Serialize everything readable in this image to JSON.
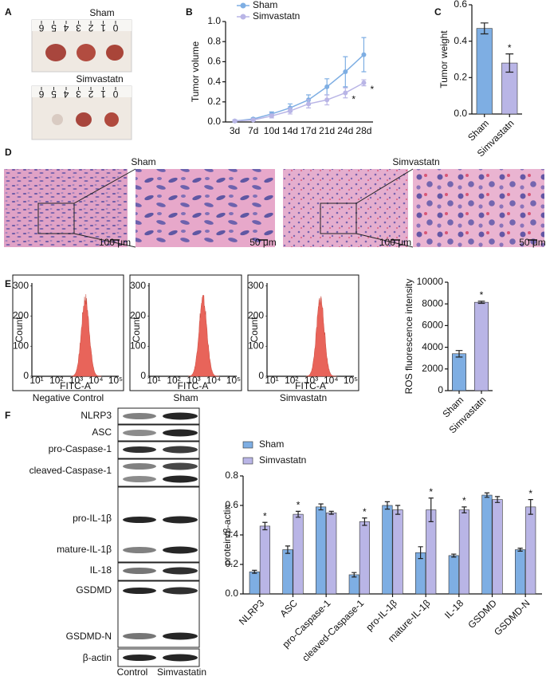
{
  "panel_labels": [
    "A",
    "B",
    "C",
    "D",
    "E",
    "F"
  ],
  "photos": {
    "groups": [
      "Sham",
      "Simvastatn"
    ],
    "ruler": [
      6,
      5,
      4,
      3,
      2,
      1,
      0
    ]
  },
  "histology": {
    "groups": [
      "Sham",
      "Simvastatn"
    ],
    "scale_bars": [
      "100 μm",
      "50 μm",
      "100 μm",
      "50 μm"
    ]
  },
  "flow": {
    "samples": [
      "Negative Control",
      "Sham",
      "Simvastatn"
    ],
    "y_label": "Count",
    "x_label": "FITC-A",
    "yticks": [
      0,
      100,
      200,
      300
    ],
    "xticks": [
      "10¹",
      "10²",
      "10³",
      "10⁴",
      "10⁵"
    ]
  },
  "blot": {
    "rows": [
      "NLRP3",
      "ASC",
      "pro-Caspase-1",
      "cleaved-Caspase-1",
      "pro-IL-1β",
      "mature-IL-1β",
      "IL-18",
      "GSDMD",
      "GSDMD-N",
      "β-actin"
    ],
    "lanes": [
      "Control",
      "Simvastatin"
    ]
  },
  "chart_data": [
    {
      "type": "line",
      "y_label": "Tumor volume",
      "categories": [
        "3d",
        "7d",
        "10d",
        "14d",
        "17d",
        "21d",
        "24d",
        "28d"
      ],
      "series": [
        {
          "name": "Sham",
          "color": "#7eaee3",
          "values": [
            0.01,
            0.03,
            0.08,
            0.14,
            0.22,
            0.35,
            0.5,
            0.67
          ],
          "errors": [
            0.01,
            0.01,
            0.02,
            0.04,
            0.05,
            0.08,
            0.15,
            0.17
          ],
          "significance": [
            null,
            null,
            null,
            null,
            null,
            null,
            null,
            null
          ]
        },
        {
          "name": "Simvastatn",
          "color": "#b9b5e6",
          "values": [
            0.01,
            0.02,
            0.06,
            0.11,
            0.18,
            0.22,
            0.29,
            0.39
          ],
          "errors": [
            0.005,
            0.01,
            0.02,
            0.03,
            0.04,
            0.05,
            0.05,
            0.03
          ],
          "significance": [
            null,
            null,
            null,
            null,
            null,
            null,
            "*",
            "*"
          ]
        }
      ],
      "ylim": [
        0,
        1
      ],
      "yticks": [
        {
          "value": 0,
          "label": "0.0"
        },
        0.2,
        0.4,
        0.6,
        0.8,
        {
          "value": 1,
          "label": "1.0"
        }
      ],
      "legend": "top"
    },
    {
      "type": "bar",
      "y_label": "Tumor weight",
      "categories": [
        "Sham",
        "Simvastatn"
      ],
      "values": [
        0.47,
        0.28
      ],
      "errors": [
        0.03,
        0.05
      ],
      "colors": [
        "#7eaee3",
        "#b9b5e6"
      ],
      "significance": [
        null,
        "*"
      ],
      "ylim": [
        0,
        0.6
      ],
      "yticks": [
        {
          "value": 0,
          "label": "0.0"
        },
        0.2,
        0.4,
        0.6
      ]
    },
    {
      "type": "bar",
      "y_label": "ROS fluorescence intensity",
      "categories": [
        "Sham",
        "Simvastatn"
      ],
      "values": [
        3400,
        8150
      ],
      "errors": [
        300,
        100
      ],
      "colors": [
        "#7eaee3",
        "#b9b5e6"
      ],
      "significance": [
        null,
        "*"
      ],
      "ylim": [
        0,
        10000
      ],
      "yticks": [
        0,
        2000,
        4000,
        6000,
        8000,
        10000
      ]
    },
    {
      "type": "bar",
      "y_label": "protein/β-actin",
      "categories": [
        "NLRP3",
        "ASC",
        "pro-Caspase-1",
        "cleaved-Caspase-1",
        "pro-IL-1β",
        "mature-IL-1β",
        "IL-18",
        "GSDMD",
        "GSDMD-N"
      ],
      "series": [
        {
          "name": "Sham",
          "color": "#7eaee3",
          "values": [
            0.15,
            0.3,
            0.59,
            0.13,
            0.6,
            0.28,
            0.26,
            0.67,
            0.3
          ],
          "errors": [
            0.01,
            0.025,
            0.02,
            0.015,
            0.025,
            0.04,
            0.01,
            0.015,
            0.01
          ],
          "significance": [
            null,
            null,
            null,
            null,
            null,
            null,
            null,
            null,
            null
          ]
        },
        {
          "name": "Simvastatn",
          "color": "#b9b5e6",
          "values": [
            0.46,
            0.54,
            0.55,
            0.49,
            0.57,
            0.57,
            0.57,
            0.64,
            0.59
          ],
          "errors": [
            0.025,
            0.02,
            0.01,
            0.025,
            0.03,
            0.08,
            0.02,
            0.02,
            0.05
          ],
          "significance": [
            "*",
            "*",
            null,
            "*",
            null,
            "*",
            "*",
            null,
            "*"
          ]
        }
      ],
      "ylim": [
        0,
        0.8
      ],
      "yticks": [
        {
          "value": 0,
          "label": "0.0"
        },
        0.2,
        0.4,
        0.6,
        0.8
      ],
      "legend": "upper-left"
    }
  ]
}
